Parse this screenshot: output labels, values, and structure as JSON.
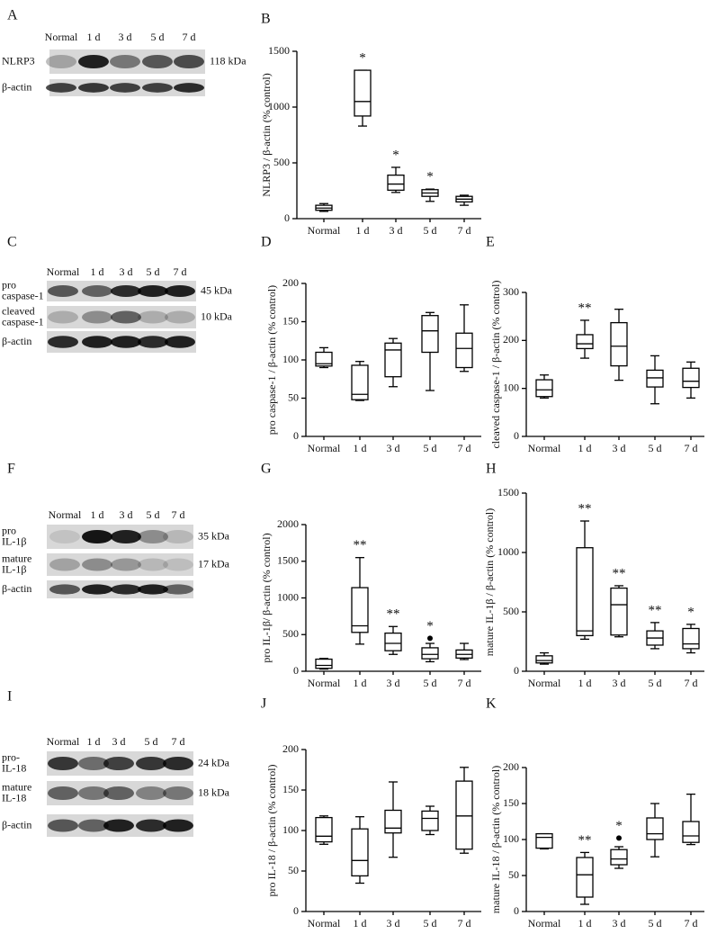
{
  "blots": [
    {
      "panel": "A",
      "lanes": [
        "Normal",
        "1 d",
        "3 d",
        "5 d",
        "7 d"
      ],
      "rows": [
        {
          "label": [
            "NLRP3"
          ],
          "kda": "118 kDa"
        },
        {
          "label": [
            "β-actin"
          ]
        }
      ]
    },
    {
      "panel": "C",
      "lanes": [
        "Normal",
        "1 d",
        "3 d",
        "5 d",
        "7 d"
      ],
      "rows": [
        {
          "label": [
            "pro",
            "caspase-1"
          ],
          "kda": "45 kDa"
        },
        {
          "label": [
            "cleaved",
            "caspase-1"
          ],
          "kda": "10 kDa"
        },
        {
          "label": [
            "β-actin"
          ]
        }
      ]
    },
    {
      "panel": "F",
      "lanes": [
        "Normal",
        "1 d",
        "3 d",
        "5 d",
        "7 d"
      ],
      "rows": [
        {
          "label": [
            "pro",
            "IL-1β"
          ],
          "kda": "35 kDa"
        },
        {
          "label": [
            "mature",
            "IL-1β"
          ],
          "kda": "17 kDa"
        },
        {
          "label": [
            "β-actin"
          ]
        }
      ]
    },
    {
      "panel": "I",
      "lanes": [
        "Normal",
        "1 d",
        "3 d",
        "5 d",
        "7 d"
      ],
      "rows": [
        {
          "label": [
            "pro-",
            "IL-18"
          ],
          "kda": "24 kDa"
        },
        {
          "label": [
            "mature",
            "IL-18"
          ],
          "kda": "18 kDa"
        },
        {
          "label": [
            "β-actin"
          ]
        }
      ]
    }
  ],
  "chart_data": [
    {
      "type": "box",
      "panel": "B",
      "ylabel": "NLRP3 / β-actin (% control)",
      "categories": [
        "Normal",
        "1 d",
        "3 d",
        "5 d",
        "7 d"
      ],
      "ylim": [
        0,
        1500
      ],
      "yticks": [
        0,
        500,
        1000,
        1500
      ],
      "boxes": {
        "min": [
          65,
          830,
          235,
          155,
          120
        ],
        "q1": [
          75,
          920,
          255,
          200,
          150
        ],
        "median": [
          95,
          1050,
          310,
          230,
          175
        ],
        "q3": [
          120,
          1330,
          390,
          260,
          200
        ],
        "max": [
          135,
          1330,
          460,
          265,
          210
        ]
      },
      "outliers": [
        [],
        [],
        [],
        [],
        []
      ],
      "significance": [
        null,
        "*",
        "*",
        "*",
        null
      ]
    },
    {
      "type": "box",
      "panel": "D",
      "ylabel": "pro caspase-1 / β-actin (% control)",
      "categories": [
        "Normal",
        "1 d",
        "3 d",
        "5 d",
        "7 d"
      ],
      "ylim": [
        0,
        200
      ],
      "yticks": [
        0,
        50,
        100,
        150,
        200
      ],
      "boxes": {
        "min": [
          90,
          47,
          65,
          60,
          85
        ],
        "q1": [
          92,
          48,
          78,
          110,
          90
        ],
        "median": [
          95,
          55,
          113,
          138,
          115
        ],
        "q3": [
          110,
          93,
          122,
          158,
          135
        ],
        "max": [
          116,
          98,
          128,
          162,
          172
        ]
      },
      "outliers": [
        [],
        [],
        [],
        [],
        []
      ],
      "significance": [
        null,
        null,
        null,
        null,
        null
      ]
    },
    {
      "type": "box",
      "panel": "E",
      "ylabel": "cleaved caspase-1 / β-actin (% control)",
      "categories": [
        "Normal",
        "1 d",
        "3 d",
        "5 d",
        "7 d"
      ],
      "ylim": [
        0,
        300
      ],
      "yticks": [
        0,
        100,
        200,
        300
      ],
      "boxes": {
        "min": [
          80,
          163,
          117,
          68,
          80
        ],
        "q1": [
          83,
          183,
          147,
          103,
          102
        ],
        "median": [
          97,
          193,
          188,
          122,
          115
        ],
        "q3": [
          118,
          212,
          237,
          138,
          142
        ],
        "max": [
          128,
          242,
          265,
          168,
          155
        ]
      },
      "outliers": [
        [],
        [],
        [],
        [],
        []
      ],
      "significance": [
        null,
        "**",
        null,
        null,
        null
      ]
    },
    {
      "type": "box",
      "panel": "G",
      "ylabel": "pro IL-1β/ β-actin (% control)",
      "categories": [
        "Normal",
        "1 d",
        "3 d",
        "5 d",
        "7 d"
      ],
      "ylim": [
        0,
        2000
      ],
      "yticks": [
        0,
        500,
        1000,
        1500,
        2000
      ],
      "boxes": {
        "min": [
          30,
          370,
          230,
          130,
          160
        ],
        "q1": [
          40,
          530,
          280,
          170,
          180
        ],
        "median": [
          80,
          620,
          380,
          230,
          230
        ],
        "q3": [
          165,
          1140,
          520,
          320,
          290
        ],
        "max": [
          175,
          1550,
          610,
          380,
          380
        ]
      },
      "outliers": [
        [],
        [],
        [],
        [
          450
        ],
        []
      ],
      "significance": [
        null,
        "**",
        "**",
        "*",
        null
      ]
    },
    {
      "type": "box",
      "panel": "H",
      "ylabel": "mature IL-1β / β-actin (% control)",
      "categories": [
        "Normal",
        "1 d",
        "3 d",
        "5 d",
        "7 d"
      ],
      "ylim": [
        0,
        1500
      ],
      "yticks": [
        0,
        500,
        1000,
        1500
      ],
      "boxes": {
        "min": [
          60,
          270,
          290,
          190,
          155
        ],
        "q1": [
          70,
          300,
          305,
          220,
          190
        ],
        "median": [
          90,
          340,
          560,
          280,
          230
        ],
        "q3": [
          130,
          1040,
          700,
          340,
          360
        ],
        "max": [
          155,
          1265,
          720,
          410,
          395
        ]
      },
      "outliers": [
        [],
        [],
        [],
        [],
        []
      ],
      "significance": [
        null,
        "**",
        "**",
        "**",
        "*"
      ]
    },
    {
      "type": "box",
      "panel": "J",
      "ylabel": "pro IL-18 / β-actin (% control)",
      "categories": [
        "Normal",
        "1 d",
        "3 d",
        "5 d",
        "7 d"
      ],
      "ylim": [
        0,
        200
      ],
      "yticks": [
        0,
        50,
        100,
        150,
        200
      ],
      "boxes": {
        "min": [
          83,
          35,
          67,
          95,
          72
        ],
        "q1": [
          86,
          44,
          97,
          100,
          77
        ],
        "median": [
          93,
          63,
          103,
          115,
          118
        ],
        "q3": [
          116,
          102,
          125,
          124,
          161
        ],
        "max": [
          118,
          117,
          160,
          130,
          178
        ]
      },
      "outliers": [
        [],
        [],
        [],
        [],
        []
      ],
      "significance": [
        null,
        null,
        null,
        null,
        null
      ]
    },
    {
      "type": "box",
      "panel": "K",
      "ylabel": "mature IL-18 / β-actin (% control)",
      "categories": [
        "Normal",
        "1 d",
        "3 d",
        "5 d",
        "7 d"
      ],
      "ylim": [
        0,
        200
      ],
      "yticks": [
        0,
        50,
        100,
        150,
        200
      ],
      "boxes": {
        "min": [
          87,
          10,
          60,
          76,
          93
        ],
        "q1": [
          88,
          20,
          65,
          100,
          96
        ],
        "median": [
          103,
          51,
          73,
          108,
          105
        ],
        "q3": [
          108,
          75,
          86,
          130,
          125
        ],
        "max": [
          108,
          82,
          90,
          150,
          163
        ]
      },
      "outliers": [
        [],
        [],
        [
          102
        ],
        [],
        []
      ],
      "significance": [
        null,
        "**",
        "*",
        null,
        null
      ]
    }
  ]
}
